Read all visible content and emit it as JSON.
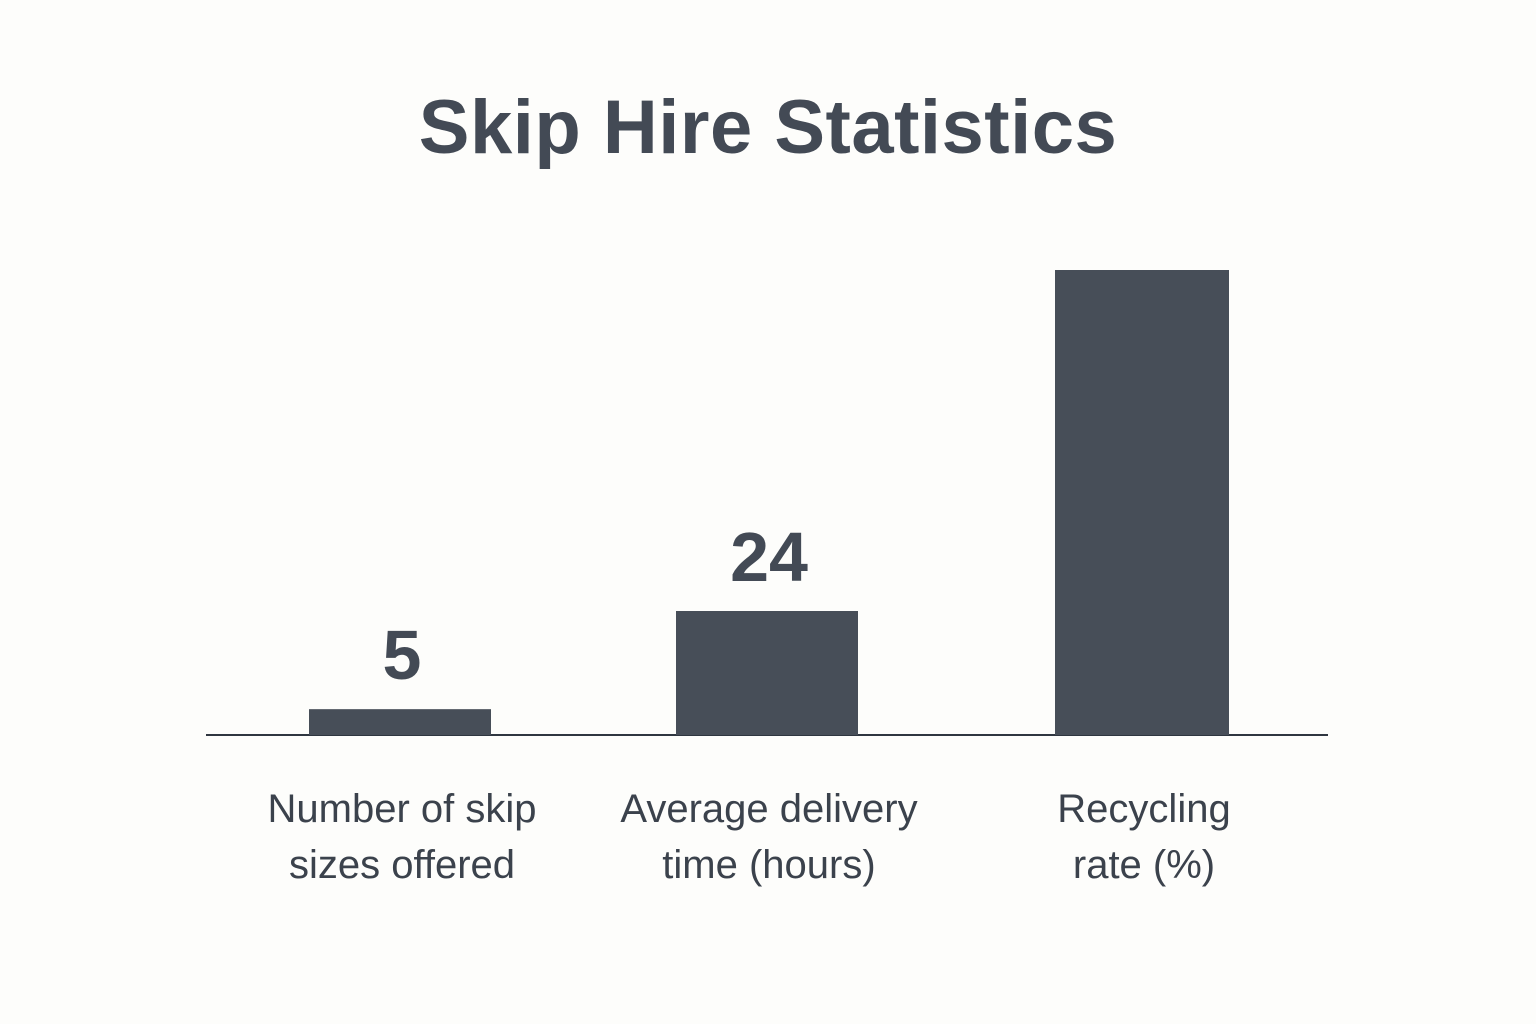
{
  "chart_data": {
    "type": "bar",
    "title": "Skip Hire Statistics",
    "categories": [
      [
        "Number of skip",
        "sizes offered"
      ],
      [
        "Average delivery",
        "time (hours)"
      ],
      [
        "Recycling",
        "rate (%)"
      ]
    ],
    "values": [
      5,
      24,
      90
    ],
    "data_labels": [
      "5",
      "24",
      ""
    ],
    "ylim": [
      0,
      90
    ],
    "xlabel": "",
    "ylabel": "",
    "grid": false,
    "legend": "none",
    "bar_color": "#474e58",
    "text_color": "#434a55"
  }
}
